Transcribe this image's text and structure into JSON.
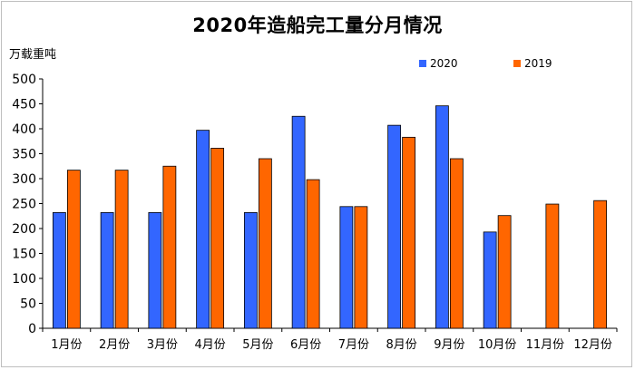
{
  "chart_data": {
    "type": "bar",
    "title": "2020年造船完工量分月情况",
    "ylabel": "万载重吨",
    "xlabel": "",
    "ylim": [
      0,
      500
    ],
    "yticks": [
      0,
      50,
      100,
      150,
      200,
      250,
      300,
      350,
      400,
      450,
      500
    ],
    "categories": [
      "1月份",
      "2月份",
      "3月份",
      "4月份",
      "5月份",
      "6月份",
      "7月份",
      "8月份",
      "9月份",
      "10月份",
      "11月份",
      "12月份"
    ],
    "series": [
      {
        "name": "2020",
        "color": "#3366ff",
        "values": [
          232,
          232,
          232,
          397,
          232,
          425,
          244,
          407,
          446,
          193,
          null,
          null
        ]
      },
      {
        "name": "2019",
        "color": "#ff6600",
        "values": [
          317,
          317,
          325,
          361,
          340,
          298,
          244,
          383,
          340,
          226,
          249,
          256
        ]
      }
    ],
    "legend_position": "top-right",
    "grid": false
  }
}
